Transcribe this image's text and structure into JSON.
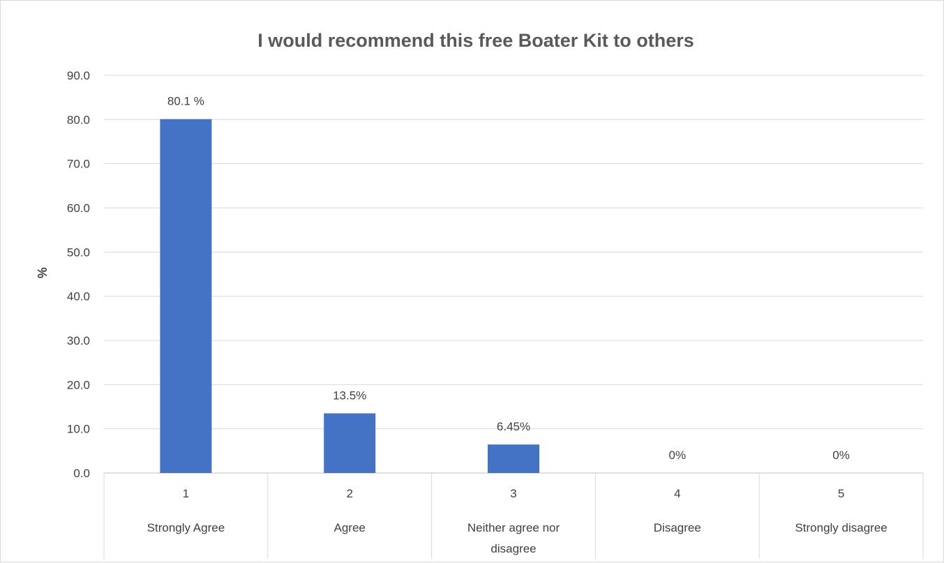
{
  "chart_data": {
    "type": "bar",
    "title": "I would recommend this free Boater Kit to others",
    "ylabel": "%",
    "xlabel": "",
    "ylim": [
      0,
      90
    ],
    "ytick_step": 10,
    "ytick_labels": [
      "0.0",
      "10.0",
      "20.0",
      "30.0",
      "40.0",
      "50.0",
      "60.0",
      "70.0",
      "80.0",
      "90.0"
    ],
    "categories": [
      {
        "number": "1",
        "label_lines": [
          "Strongly Agree"
        ]
      },
      {
        "number": "2",
        "label_lines": [
          "Agree"
        ]
      },
      {
        "number": "3",
        "label_lines": [
          "Neither agree nor",
          "disagree"
        ]
      },
      {
        "number": "4",
        "label_lines": [
          "Disagree"
        ]
      },
      {
        "number": "5",
        "label_lines": [
          "Strongly disagree"
        ]
      }
    ],
    "values": [
      80.1,
      13.5,
      6.45,
      0,
      0
    ],
    "data_labels": [
      "80.1 %",
      "13.5%",
      "6.45%",
      "0%",
      "0%"
    ],
    "bar_color": "#4472c4",
    "gridlines": true,
    "legend": "none"
  }
}
